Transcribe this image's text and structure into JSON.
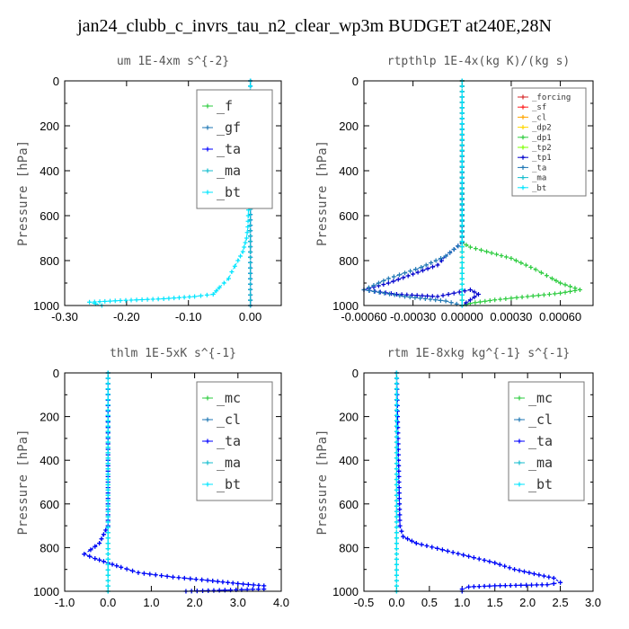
{
  "figure_title": "jan24_clubb_c_invrs_tau_n2_clear_wp3m  BUDGET at240E,28N",
  "chart_data": [
    {
      "type": "line",
      "title": "um  1E-4xm s^{-2}",
      "ylabel": "Pressure [hPa]",
      "xlim": [
        -0.3,
        0.05
      ],
      "ylim": [
        1000,
        0
      ],
      "xticks": [
        "-0.30",
        "-0.20",
        "-0.10",
        "0.00"
      ],
      "xtick_values": [
        -0.3,
        -0.2,
        -0.1,
        0.0
      ],
      "yticks": [
        "0",
        "200",
        "400",
        "600",
        "800",
        "1000"
      ],
      "ytick_values": [
        0,
        200,
        400,
        600,
        800,
        1000
      ],
      "legend_position": "top-right",
      "legend_size": "large",
      "series": [
        {
          "name": "_f",
          "color": "#2ecc40",
          "points": [
            [
              0,
              0
            ],
            [
              0,
              1000
            ]
          ]
        },
        {
          "name": "_gf",
          "color": "#1f77b4",
          "points": [
            [
              0,
              0
            ],
            [
              0,
              1000
            ]
          ]
        },
        {
          "name": "_ta",
          "color": "#0000ff",
          "points": [
            [
              0,
              0
            ],
            [
              0,
              1000
            ]
          ]
        },
        {
          "name": "_ma",
          "color": "#17becf",
          "points": [
            [
              0,
              0
            ],
            [
              0,
              1000
            ]
          ]
        },
        {
          "name": "_bt",
          "color": "#00e5ff",
          "points": [
            [
              0,
              0
            ],
            [
              -0.001,
              300
            ],
            [
              -0.002,
              500
            ],
            [
              -0.004,
              650
            ],
            [
              -0.006,
              700
            ],
            [
              -0.012,
              760
            ],
            [
              -0.02,
              800
            ],
            [
              -0.03,
              850
            ],
            [
              -0.035,
              880
            ],
            [
              -0.05,
              920
            ],
            [
              -0.06,
              950
            ],
            [
              -0.09,
              960
            ],
            [
              -0.14,
              970
            ],
            [
              -0.21,
              978
            ],
            [
              -0.26,
              985
            ],
            [
              -0.24,
              1000
            ]
          ]
        }
      ]
    },
    {
      "type": "line",
      "title": "rtpthlp  1E-4x(kg K)/(kg s)",
      "ylabel": "Pressure [hPa]",
      "xlim": [
        -0.0006,
        0.0008
      ],
      "ylim": [
        1000,
        0
      ],
      "xticks": [
        "-0.00060",
        "-0.00030",
        "0.00000",
        "0.00030",
        "0.00060"
      ],
      "xtick_values": [
        -0.0006,
        -0.0003,
        0.0,
        0.0003,
        0.0006
      ],
      "yticks": [
        "0",
        "200",
        "400",
        "600",
        "800",
        "1000"
      ],
      "ytick_values": [
        0,
        200,
        400,
        600,
        800,
        1000
      ],
      "legend_position": "top-right",
      "legend_size": "small",
      "series": [
        {
          "name": "_forcing",
          "color": "#d62728",
          "points": [
            [
              0,
              0
            ],
            [
              0,
              1000
            ]
          ]
        },
        {
          "name": "_sf",
          "color": "#ff2020",
          "points": [
            [
              0,
              0
            ],
            [
              0,
              1000
            ]
          ]
        },
        {
          "name": "_cl",
          "color": "#ffa500",
          "points": [
            [
              0,
              0
            ],
            [
              0,
              1000
            ]
          ]
        },
        {
          "name": "_dp2",
          "color": "#ffd700",
          "points": [
            [
              0,
              0
            ],
            [
              0,
              1000
            ]
          ]
        },
        {
          "name": "_dp1",
          "color": "#2ecc40",
          "points": [
            [
              0,
              0
            ],
            [
              0,
              720
            ],
            [
              5e-05,
              740
            ],
            [
              0.00015,
              760
            ],
            [
              0.0003,
              790
            ],
            [
              0.00045,
              840
            ],
            [
              0.00055,
              880
            ],
            [
              0.0006,
              900
            ],
            [
              0.00072,
              930
            ],
            [
              0.0006,
              945
            ],
            [
              0.0004,
              960
            ],
            [
              0.0002,
              975
            ],
            [
              5e-05,
              990
            ],
            [
              0,
              1000
            ]
          ]
        },
        {
          "name": "_tp2",
          "color": "#7fff00",
          "points": [
            [
              0,
              0
            ],
            [
              0,
              1000
            ]
          ]
        },
        {
          "name": "_tp1",
          "color": "#0000cd",
          "points": [
            [
              0,
              0
            ],
            [
              0,
              720
            ],
            [
              -5e-05,
              750
            ],
            [
              -0.0001,
              780
            ],
            [
              -0.00015,
              820
            ],
            [
              -0.0003,
              860
            ],
            [
              -0.00045,
              900
            ],
            [
              -0.0006,
              930
            ],
            [
              -0.0004,
              950
            ],
            [
              -0.00015,
              960
            ],
            [
              5e-05,
              930
            ],
            [
              0.0001,
              950
            ],
            [
              5e-05,
              975
            ],
            [
              0,
              1000
            ]
          ]
        },
        {
          "name": "_ta",
          "color": "#1f77b4",
          "points": [
            [
              0,
              0
            ],
            [
              0,
              720
            ],
            [
              -0.0001,
              780
            ],
            [
              -0.00025,
              830
            ],
            [
              -0.00045,
              880
            ],
            [
              -0.0006,
              930
            ],
            [
              -0.00035,
              960
            ],
            [
              -0.0001,
              980
            ],
            [
              0,
              1000
            ]
          ]
        },
        {
          "name": "_ma",
          "color": "#17becf",
          "points": [
            [
              0,
              0
            ],
            [
              0,
              1000
            ]
          ]
        },
        {
          "name": "_bt",
          "color": "#00e5ff",
          "points": [
            [
              0,
              0
            ],
            [
              0,
              1000
            ]
          ]
        }
      ]
    },
    {
      "type": "line",
      "title": "thlm  1E-5xK s^{-1}",
      "ylabel": "Pressure [hPa]",
      "xlim": [
        -1.0,
        4.0
      ],
      "ylim": [
        1000,
        0
      ],
      "xticks": [
        "-1.0",
        "0.0",
        "1.0",
        "2.0",
        "3.0",
        "4.0"
      ],
      "xtick_values": [
        -1.0,
        0.0,
        1.0,
        2.0,
        3.0,
        4.0
      ],
      "yticks": [
        "0",
        "200",
        "400",
        "600",
        "800",
        "1000"
      ],
      "ytick_values": [
        0,
        200,
        400,
        600,
        800,
        1000
      ],
      "legend_position": "top-right",
      "legend_size": "large",
      "series": [
        {
          "name": "_mc",
          "color": "#2ecc40",
          "points": [
            [
              0,
              0
            ],
            [
              0,
              1000
            ]
          ]
        },
        {
          "name": "_cl",
          "color": "#1f77b4",
          "points": [
            [
              0,
              0
            ],
            [
              0,
              700
            ],
            [
              -0.1,
              740
            ],
            [
              -0.2,
              780
            ],
            [
              -0.4,
              810
            ],
            [
              -0.55,
              830
            ],
            [
              -0.3,
              850
            ],
            [
              0,
              870
            ],
            [
              0.3,
              890
            ],
            [
              0.7,
              915
            ],
            [
              1.5,
              935
            ],
            [
              2.3,
              950
            ],
            [
              3.0,
              965
            ],
            [
              3.6,
              975
            ],
            [
              3.6,
              990
            ],
            [
              1.8,
              1000
            ]
          ]
        },
        {
          "name": "_ta",
          "color": "#0000ff",
          "points": [
            [
              0,
              0
            ],
            [
              0,
              700
            ],
            [
              -0.1,
              740
            ],
            [
              -0.2,
              780
            ],
            [
              -0.4,
              810
            ],
            [
              -0.55,
              830
            ],
            [
              -0.3,
              850
            ],
            [
              0,
              870
            ],
            [
              0.3,
              890
            ],
            [
              0.7,
              915
            ],
            [
              1.5,
              935
            ],
            [
              2.3,
              950
            ],
            [
              3.0,
              965
            ],
            [
              3.6,
              975
            ],
            [
              3.6,
              990
            ],
            [
              1.8,
              1000
            ]
          ]
        },
        {
          "name": "_ma",
          "color": "#17becf",
          "points": [
            [
              0,
              0
            ],
            [
              0,
              1000
            ]
          ]
        },
        {
          "name": "_bt",
          "color": "#00e5ff",
          "points": [
            [
              0,
              0
            ],
            [
              0,
              1000
            ]
          ]
        }
      ]
    },
    {
      "type": "line",
      "title": "rtm  1E-8xkg kg^{-1} s^{-1}",
      "ylabel": "Pressure [hPa]",
      "xlim": [
        -0.5,
        3.0
      ],
      "ylim": [
        1000,
        0
      ],
      "xticks": [
        "-0.5",
        "0.0",
        "0.5",
        "1.0",
        "1.5",
        "2.0",
        "2.5",
        "3.0"
      ],
      "xtick_values": [
        -0.5,
        0.0,
        0.5,
        1.0,
        1.5,
        2.0,
        2.5,
        3.0
      ],
      "yticks": [
        "0",
        "200",
        "400",
        "600",
        "800",
        "1000"
      ],
      "ytick_values": [
        0,
        200,
        400,
        600,
        800,
        1000
      ],
      "legend_position": "top-right",
      "legend_size": "large",
      "series": [
        {
          "name": "_mc",
          "color": "#2ecc40",
          "points": [
            [
              0,
              0
            ],
            [
              0,
              1000
            ]
          ]
        },
        {
          "name": "_cl",
          "color": "#1f77b4",
          "points": [
            [
              0,
              0
            ],
            [
              0.05,
              700
            ],
            [
              0.1,
              750
            ],
            [
              0.3,
              780
            ],
            [
              0.7,
              810
            ],
            [
              1.1,
              840
            ],
            [
              1.5,
              870
            ],
            [
              1.8,
              900
            ],
            [
              2.1,
              920
            ],
            [
              2.4,
              940
            ],
            [
              2.5,
              960
            ],
            [
              2.3,
              970
            ],
            [
              1.5,
              975
            ],
            [
              1.1,
              980
            ],
            [
              1.0,
              990
            ],
            [
              1.0,
              1000
            ]
          ]
        },
        {
          "name": "_ta",
          "color": "#0000ff",
          "points": [
            [
              0,
              0
            ],
            [
              0.05,
              700
            ],
            [
              0.1,
              750
            ],
            [
              0.3,
              780
            ],
            [
              0.7,
              810
            ],
            [
              1.1,
              840
            ],
            [
              1.5,
              870
            ],
            [
              1.8,
              900
            ],
            [
              2.1,
              920
            ],
            [
              2.4,
              940
            ],
            [
              2.5,
              960
            ],
            [
              2.3,
              970
            ],
            [
              1.5,
              975
            ],
            [
              1.1,
              980
            ],
            [
              1.0,
              990
            ],
            [
              1.0,
              1000
            ]
          ]
        },
        {
          "name": "_ma",
          "color": "#17becf",
          "points": [
            [
              0,
              0
            ],
            [
              0,
              1000
            ]
          ]
        },
        {
          "name": "_bt",
          "color": "#00e5ff",
          "points": [
            [
              0,
              0
            ],
            [
              0,
              1000
            ]
          ]
        }
      ]
    }
  ]
}
